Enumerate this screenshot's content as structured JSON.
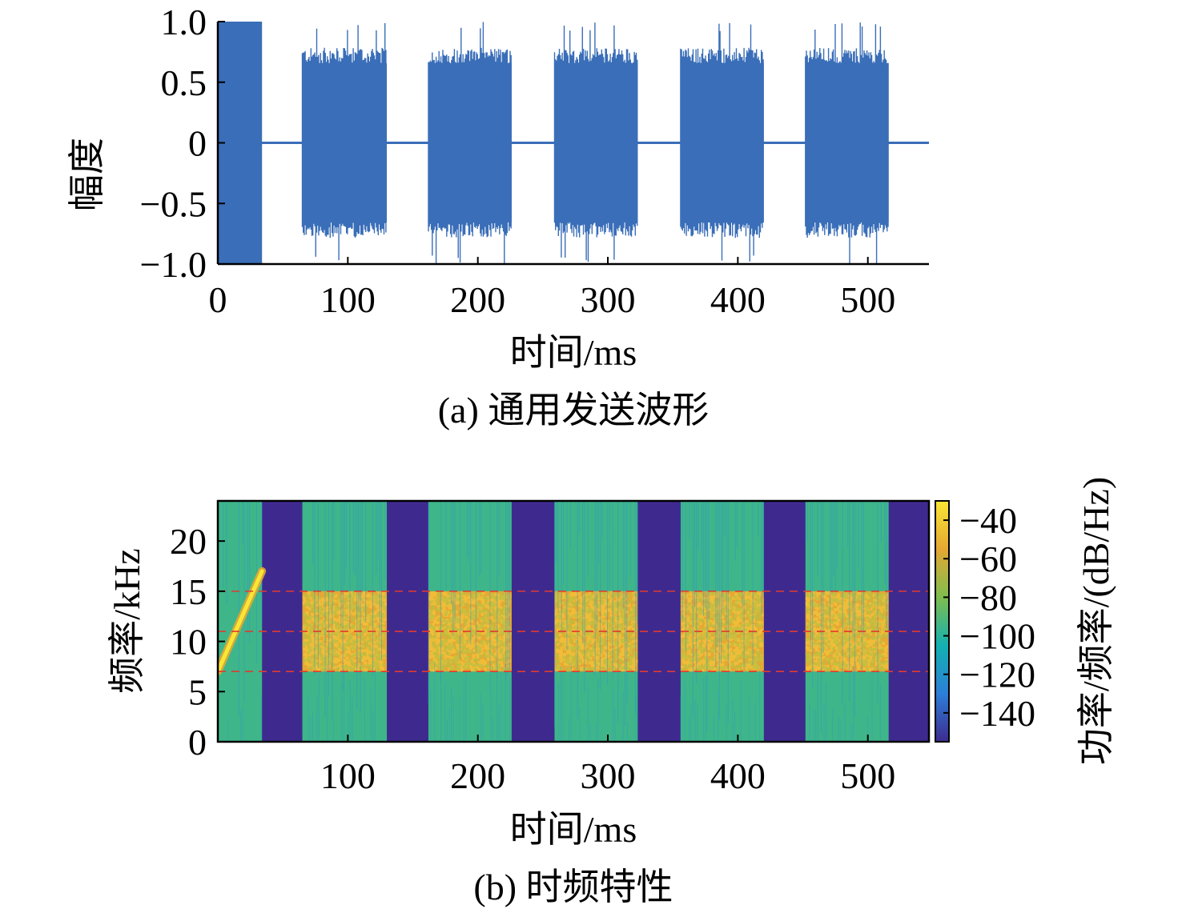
{
  "chart_data": [
    {
      "type": "line",
      "caption": "(a) 通用发送波形",
      "xlabel": "时间/ms",
      "ylabel": "幅度",
      "xlim": [
        0,
        547
      ],
      "ylim": [
        -1.0,
        1.0
      ],
      "xticks": [
        0,
        100,
        200,
        300,
        400,
        500
      ],
      "xtick_labels": [
        "0",
        "100",
        "200",
        "300",
        "400",
        "500"
      ],
      "yticks": [
        1.0,
        0.5,
        0,
        -0.5,
        -1.0
      ],
      "ytick_labels": [
        "1.0",
        "0.5",
        "0",
        "−0.5",
        "−1.0"
      ],
      "grid": false,
      "series_color": "#3A6EB8",
      "segments": [
        {
          "kind": "chirp",
          "start_ms": 0,
          "end_ms": 34,
          "amplitude": 1.0
        },
        {
          "kind": "noise",
          "start_ms": 65,
          "end_ms": 130,
          "amplitude": 0.8,
          "peak": 1.0
        },
        {
          "kind": "noise",
          "start_ms": 162,
          "end_ms": 226,
          "amplitude": 0.8,
          "peak": 1.0
        },
        {
          "kind": "noise",
          "start_ms": 259,
          "end_ms": 323,
          "amplitude": 0.8,
          "peak": 1.0
        },
        {
          "kind": "noise",
          "start_ms": 356,
          "end_ms": 420,
          "amplitude": 0.8,
          "peak": 1.0
        },
        {
          "kind": "noise",
          "start_ms": 452,
          "end_ms": 516,
          "amplitude": 0.8,
          "peak": 1.0
        }
      ]
    },
    {
      "type": "heatmap",
      "caption": "(b) 时频特性",
      "xlabel": "时间/ms",
      "ylabel": "频率/kHz",
      "colorbar_label": "功率/频率/(dB/Hz)",
      "xlim": [
        0,
        547
      ],
      "ylim": [
        0,
        24
      ],
      "xticks": [
        100,
        200,
        300,
        400,
        500
      ],
      "xtick_labels": [
        "100",
        "200",
        "300",
        "400",
        "500"
      ],
      "yticks": [
        0,
        5,
        10,
        15,
        20
      ],
      "ytick_labels": [
        "0",
        "5",
        "10",
        "15",
        "20"
      ],
      "clim": [
        -155,
        -30
      ],
      "cticks": [
        -40,
        -60,
        -80,
        -100,
        -120,
        -140
      ],
      "ctick_labels": [
        "−40",
        "−60",
        "−80",
        "−100",
        "−120",
        "−140"
      ],
      "dashed_lines_khz": [
        7,
        11,
        15
      ],
      "dashed_line_color": "#E23A2E",
      "chirp": {
        "start_ms": 0,
        "end_ms": 34,
        "f_start_khz": 7,
        "f_end_khz": 17
      },
      "silence_level_db": -150,
      "noise_floor_db": -95,
      "band_level_db": -55,
      "band_khz": [
        7,
        15
      ],
      "colormap": [
        "#3E2A8F",
        "#2C7FD8",
        "#13B1B2",
        "#7FBD4E",
        "#E5A833",
        "#F9E634"
      ]
    }
  ]
}
